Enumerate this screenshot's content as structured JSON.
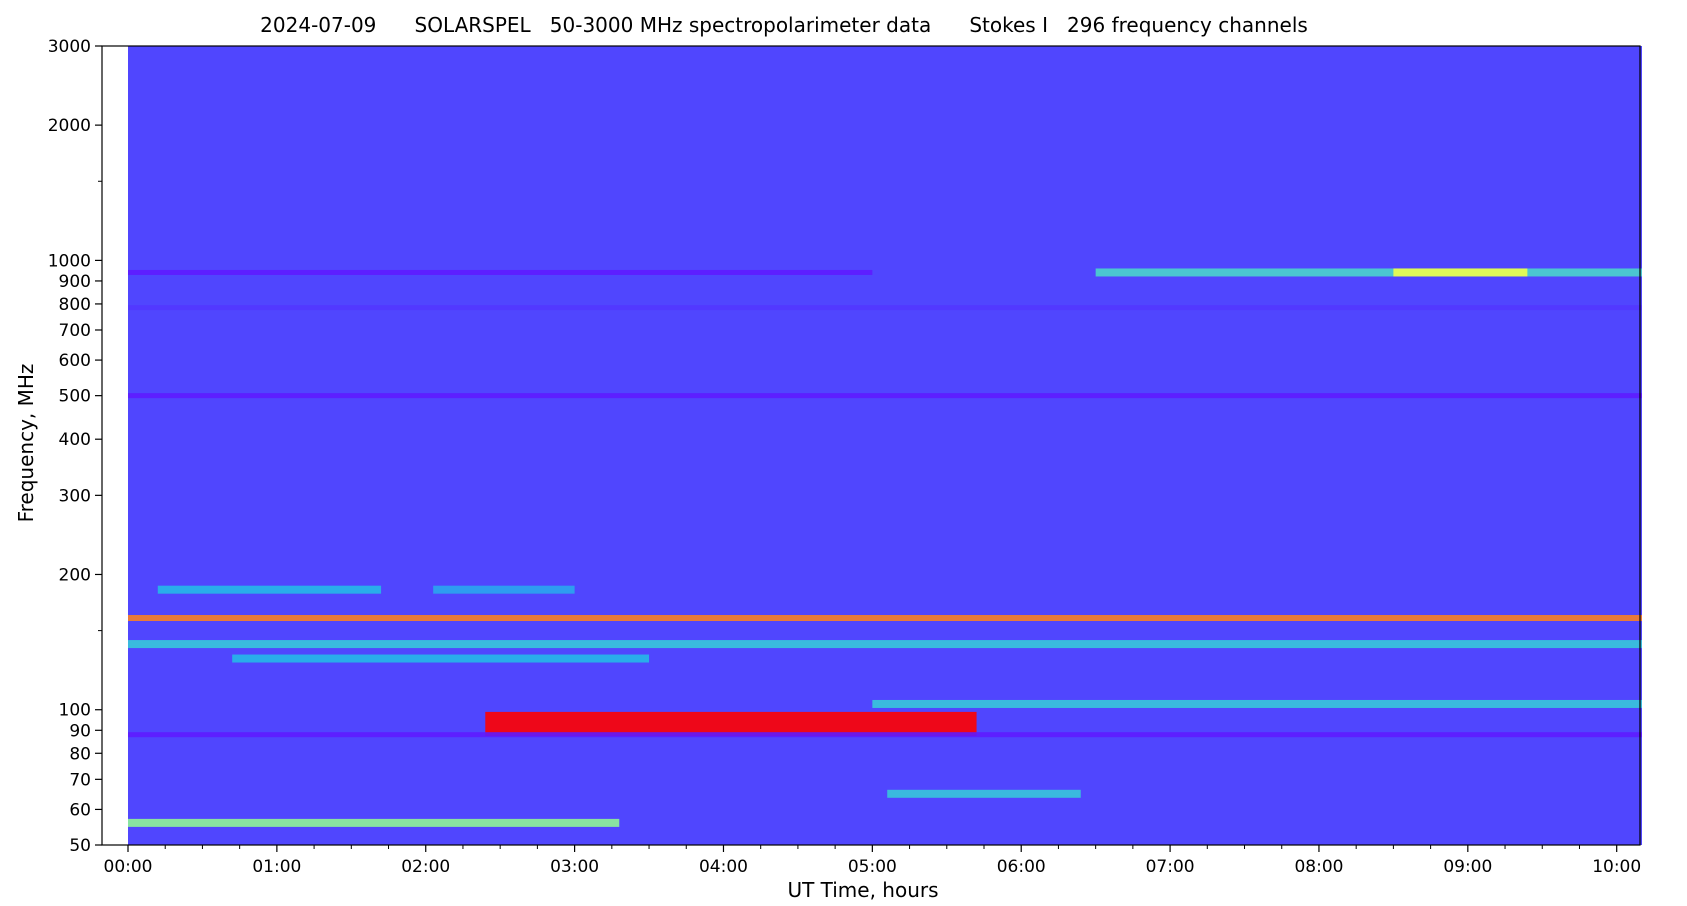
{
  "chart_data": {
    "type": "heatmap",
    "title": "2024-07-09      SOLARSPEL   50-3000 MHz spectropolarimeter data      Stokes I   296 frequency channels",
    "xlabel": "UT Time, hours",
    "ylabel": "Frequency, MHz",
    "y_scale": "log",
    "ylim": [
      50,
      3000
    ],
    "xlim_hours": [
      0,
      10.17
    ],
    "x_ticks": [
      {
        "label": "00:00",
        "h": 0
      },
      {
        "label": "01:00",
        "h": 1
      },
      {
        "label": "02:00",
        "h": 2
      },
      {
        "label": "03:00",
        "h": 3
      },
      {
        "label": "04:00",
        "h": 4
      },
      {
        "label": "05:00",
        "h": 5
      },
      {
        "label": "06:00",
        "h": 6
      },
      {
        "label": "07:00",
        "h": 7
      },
      {
        "label": "08:00",
        "h": 8
      },
      {
        "label": "09:00",
        "h": 9
      },
      {
        "label": "10:00",
        "h": 10
      }
    ],
    "y_ticks": [
      {
        "label": "50",
        "f": 50
      },
      {
        "label": "60",
        "f": 60
      },
      {
        "label": "70",
        "f": 70
      },
      {
        "label": "80",
        "f": 80
      },
      {
        "label": "90",
        "f": 90
      },
      {
        "label": "100",
        "f": 100
      },
      {
        "label": "200",
        "f": 200
      },
      {
        "label": "300",
        "f": 300
      },
      {
        "label": "400",
        "f": 400
      },
      {
        "label": "500",
        "f": 500
      },
      {
        "label": "600",
        "f": 600
      },
      {
        "label": "700",
        "f": 700
      },
      {
        "label": "800",
        "f": 800
      },
      {
        "label": "900",
        "f": 900
      },
      {
        "label": "1000",
        "f": 1000
      },
      {
        "label": "2000",
        "f": 2000
      },
      {
        "label": "3000",
        "f": 3000
      }
    ],
    "y_minor_ticks": [
      150,
      1500
    ],
    "background_color": "#5046fe",
    "colormap": [
      "#6a00ff",
      "#3a6cff",
      "#25b8e8",
      "#6ef0b0",
      "#f0ff4a",
      "#ff0000"
    ],
    "bands": [
      {
        "f": 940,
        "t0": 0.0,
        "t1": 5.0,
        "intensity": 0.05
      },
      {
        "f": 940,
        "t0": 6.5,
        "t1": 10.17,
        "intensity": 0.5
      },
      {
        "f": 940,
        "t0": 8.5,
        "t1": 9.4,
        "intensity": 0.8
      },
      {
        "f": 785,
        "t0": 0.0,
        "t1": 10.17,
        "intensity": 0.1
      },
      {
        "f": 500,
        "t0": 0.0,
        "t1": 10.17,
        "intensity": 0.05
      },
      {
        "f": 185,
        "t0": 0.2,
        "t1": 1.7,
        "intensity": 0.4
      },
      {
        "f": 185,
        "t0": 2.05,
        "t1": 3.0,
        "intensity": 0.35
      },
      {
        "f": 160,
        "t0": 0.0,
        "t1": 10.17,
        "intensity": 0.9
      },
      {
        "f": 140,
        "t0": 0.0,
        "t1": 10.17,
        "intensity": 0.45
      },
      {
        "f": 130,
        "t0": 0.7,
        "t1": 3.5,
        "intensity": 0.4
      },
      {
        "f": 103,
        "t0": 5.0,
        "t1": 10.17,
        "intensity": 0.45
      },
      {
        "f": 93,
        "t0": 2.4,
        "t1": 5.7,
        "intensity": 1.0
      },
      {
        "f": 88,
        "t0": 0.0,
        "t1": 10.17,
        "intensity": 0.05
      },
      {
        "f": 65,
        "t0": 5.1,
        "t1": 6.4,
        "intensity": 0.45
      },
      {
        "f": 56,
        "t0": 0.0,
        "t1": 3.3,
        "intensity": 0.65
      }
    ]
  }
}
